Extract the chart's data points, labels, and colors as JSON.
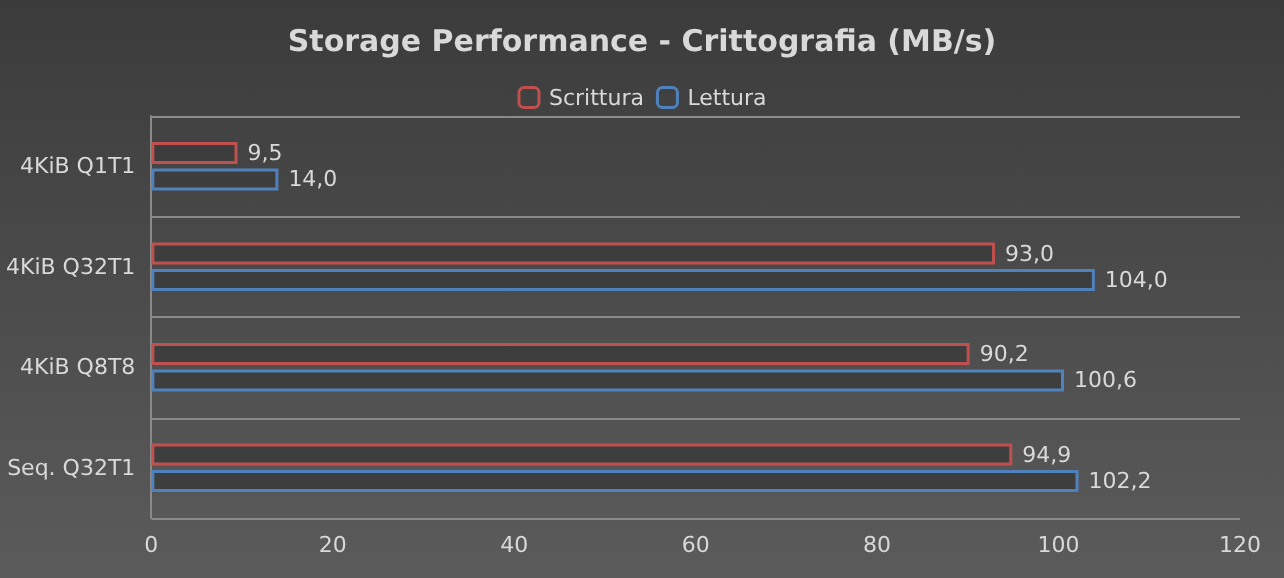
{
  "chart_data": {
    "type": "bar",
    "orientation": "horizontal",
    "title": "Storage Performance - Crittografia (MB/s)",
    "categories": [
      "4KiB Q1T1",
      "4KiB Q32T1",
      "4KiB Q8T8",
      "Seq. Q32T1"
    ],
    "series": [
      {
        "name": "Scrittura",
        "color": "#c0504d",
        "values": [
          9.5,
          93.0,
          90.2,
          94.9
        ],
        "value_labels": [
          "9,5",
          "93,0",
          "90,2",
          "94,9"
        ]
      },
      {
        "name": "Lettura",
        "color": "#4f81bd",
        "values": [
          14.0,
          104.0,
          100.6,
          102.2
        ],
        "value_labels": [
          "14,0",
          "104,0",
          "100,6",
          "102,2"
        ]
      }
    ],
    "xlim": [
      0,
      120
    ],
    "xticks": [
      0,
      20,
      40,
      60,
      80,
      100,
      120
    ],
    "grid": "y",
    "legend": "top"
  }
}
